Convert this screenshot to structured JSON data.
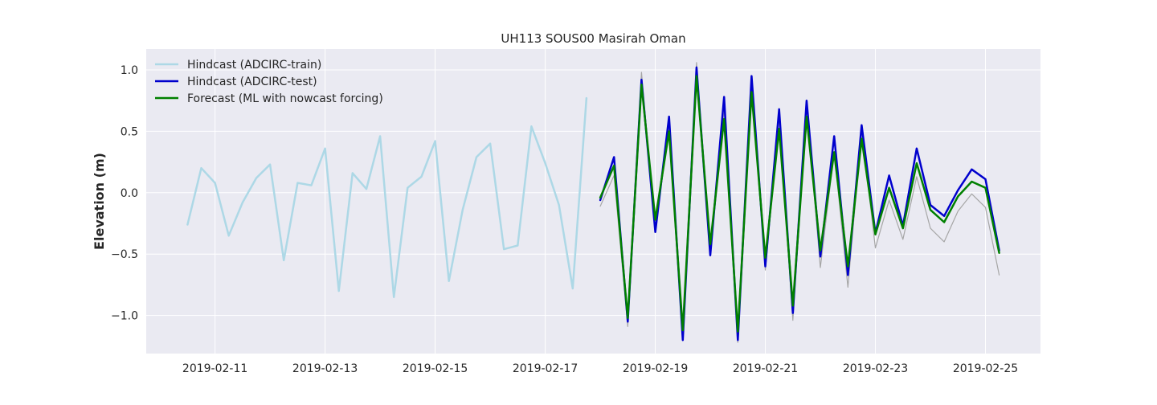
{
  "chart_data": {
    "type": "line",
    "title": "UH113 SOUS00 Masirah Oman",
    "xlabel": "",
    "ylabel": "Elevation (m)",
    "x_axis": {
      "type": "date",
      "range": [
        "2019-02-09T18:00",
        "2019-02-26T00:00"
      ],
      "ticks": [
        "2019-02-11",
        "2019-02-13",
        "2019-02-15",
        "2019-02-17",
        "2019-02-19",
        "2019-02-21",
        "2019-02-23",
        "2019-02-25"
      ]
    },
    "y_axis": {
      "range": [
        -1.31,
        1.17
      ],
      "ticks": [
        1.0,
        0.5,
        0.0,
        -0.5,
        -1.0
      ],
      "tick_labels": [
        "1.0",
        "0.5",
        "0.0",
        "−0.5",
        "−1.0"
      ]
    },
    "grid": true,
    "legend_placement": "top-left",
    "colors": {
      "plot_background": "#eaeaf2",
      "grid": "#ffffff",
      "observed": "#a6a6a6"
    },
    "series": [
      {
        "name": "Hindcast (ADCIRC-train)",
        "color": "#add8e6",
        "line_width": 2.5,
        "in_legend": true,
        "points": [
          [
            "2019-02-10T12:00",
            -0.26
          ],
          [
            "2019-02-10T18:00",
            0.2
          ],
          [
            "2019-02-11T00:00",
            0.08
          ],
          [
            "2019-02-11T06:00",
            -0.35
          ],
          [
            "2019-02-11T12:00",
            -0.08
          ],
          [
            "2019-02-11T18:00",
            0.12
          ],
          [
            "2019-02-12T00:00",
            0.23
          ],
          [
            "2019-02-12T06:00",
            -0.55
          ],
          [
            "2019-02-12T12:00",
            0.08
          ],
          [
            "2019-02-12T18:00",
            0.06
          ],
          [
            "2019-02-13T00:00",
            0.36
          ],
          [
            "2019-02-13T06:00",
            -0.8
          ],
          [
            "2019-02-13T12:00",
            0.16
          ],
          [
            "2019-02-13T18:00",
            0.03
          ],
          [
            "2019-02-14T00:00",
            0.46
          ],
          [
            "2019-02-14T06:00",
            -0.85
          ],
          [
            "2019-02-14T12:00",
            0.04
          ],
          [
            "2019-02-14T18:00",
            0.13
          ],
          [
            "2019-02-15T00:00",
            0.42
          ],
          [
            "2019-02-15T06:00",
            -0.72
          ],
          [
            "2019-02-15T12:00",
            -0.14
          ],
          [
            "2019-02-15T18:00",
            0.29
          ],
          [
            "2019-02-16T00:00",
            0.4
          ],
          [
            "2019-02-16T06:00",
            -0.46
          ],
          [
            "2019-02-16T12:00",
            -0.43
          ],
          [
            "2019-02-16T18:00",
            0.54
          ],
          [
            "2019-02-17T00:00",
            0.24
          ],
          [
            "2019-02-17T06:00",
            -0.1
          ],
          [
            "2019-02-17T12:00",
            -0.78
          ],
          [
            "2019-02-17T18:00",
            0.77
          ]
        ]
      },
      {
        "name": "",
        "color": "#a6a6a6",
        "line_width": 1.2,
        "in_legend": false,
        "points": [
          [
            "2019-02-18T00:00",
            -0.11
          ],
          [
            "2019-02-18T06:00",
            0.14
          ],
          [
            "2019-02-18T12:00",
            -1.09
          ],
          [
            "2019-02-18T18:00",
            0.98
          ],
          [
            "2019-02-19T00:00",
            -0.3
          ],
          [
            "2019-02-19T06:00",
            0.53
          ],
          [
            "2019-02-19T12:00",
            -1.2
          ],
          [
            "2019-02-19T18:00",
            1.06
          ],
          [
            "2019-02-20T00:00",
            -0.5
          ],
          [
            "2019-02-20T06:00",
            0.68
          ],
          [
            "2019-02-20T12:00",
            -1.22
          ],
          [
            "2019-02-20T18:00",
            0.9
          ],
          [
            "2019-02-21T00:00",
            -0.63
          ],
          [
            "2019-02-21T06:00",
            0.59
          ],
          [
            "2019-02-21T12:00",
            -1.04
          ],
          [
            "2019-02-21T18:00",
            0.72
          ],
          [
            "2019-02-22T00:00",
            -0.61
          ],
          [
            "2019-02-22T06:00",
            0.33
          ],
          [
            "2019-02-22T12:00",
            -0.77
          ],
          [
            "2019-02-22T18:00",
            0.5
          ],
          [
            "2019-02-23T00:00",
            -0.45
          ],
          [
            "2019-02-23T06:00",
            -0.06
          ],
          [
            "2019-02-23T12:00",
            -0.38
          ],
          [
            "2019-02-23T18:00",
            0.13
          ],
          [
            "2019-02-24T00:00",
            -0.29
          ],
          [
            "2019-02-24T06:00",
            -0.4
          ],
          [
            "2019-02-24T12:00",
            -0.15
          ],
          [
            "2019-02-24T18:00",
            -0.01
          ],
          [
            "2019-02-25T00:00",
            -0.12
          ],
          [
            "2019-02-25T06:00",
            -0.67
          ]
        ]
      },
      {
        "name": "Hindcast (ADCIRC-test)",
        "color": "#0000cd",
        "line_width": 2.5,
        "in_legend": true,
        "points": [
          [
            "2019-02-18T00:00",
            -0.06
          ],
          [
            "2019-02-18T06:00",
            0.29
          ],
          [
            "2019-02-18T12:00",
            -1.05
          ],
          [
            "2019-02-18T18:00",
            0.92
          ],
          [
            "2019-02-19T00:00",
            -0.32
          ],
          [
            "2019-02-19T06:00",
            0.62
          ],
          [
            "2019-02-19T12:00",
            -1.2
          ],
          [
            "2019-02-19T18:00",
            1.02
          ],
          [
            "2019-02-20T00:00",
            -0.51
          ],
          [
            "2019-02-20T06:00",
            0.78
          ],
          [
            "2019-02-20T12:00",
            -1.2
          ],
          [
            "2019-02-20T18:00",
            0.95
          ],
          [
            "2019-02-21T00:00",
            -0.6
          ],
          [
            "2019-02-21T06:00",
            0.68
          ],
          [
            "2019-02-21T12:00",
            -0.98
          ],
          [
            "2019-02-21T18:00",
            0.75
          ],
          [
            "2019-02-22T00:00",
            -0.52
          ],
          [
            "2019-02-22T06:00",
            0.46
          ],
          [
            "2019-02-22T12:00",
            -0.67
          ],
          [
            "2019-02-22T18:00",
            0.55
          ],
          [
            "2019-02-23T00:00",
            -0.33
          ],
          [
            "2019-02-23T06:00",
            0.14
          ],
          [
            "2019-02-23T12:00",
            -0.27
          ],
          [
            "2019-02-23T18:00",
            0.36
          ],
          [
            "2019-02-24T00:00",
            -0.1
          ],
          [
            "2019-02-24T06:00",
            -0.19
          ],
          [
            "2019-02-24T12:00",
            0.02
          ],
          [
            "2019-02-24T18:00",
            0.19
          ],
          [
            "2019-02-25T00:00",
            0.11
          ],
          [
            "2019-02-25T06:00",
            -0.47
          ]
        ]
      },
      {
        "name": "Forecast (ML with nowcast forcing)",
        "color": "#008000",
        "line_width": 2.5,
        "in_legend": true,
        "points": [
          [
            "2019-02-18T00:00",
            -0.04
          ],
          [
            "2019-02-18T06:00",
            0.22
          ],
          [
            "2019-02-18T12:00",
            -1.02
          ],
          [
            "2019-02-18T18:00",
            0.88
          ],
          [
            "2019-02-19T00:00",
            -0.22
          ],
          [
            "2019-02-19T06:00",
            0.5
          ],
          [
            "2019-02-19T12:00",
            -1.12
          ],
          [
            "2019-02-19T18:00",
            0.95
          ],
          [
            "2019-02-20T00:00",
            -0.42
          ],
          [
            "2019-02-20T06:00",
            0.6
          ],
          [
            "2019-02-20T12:00",
            -1.13
          ],
          [
            "2019-02-20T18:00",
            0.82
          ],
          [
            "2019-02-21T00:00",
            -0.53
          ],
          [
            "2019-02-21T06:00",
            0.52
          ],
          [
            "2019-02-21T12:00",
            -0.92
          ],
          [
            "2019-02-21T18:00",
            0.62
          ],
          [
            "2019-02-22T00:00",
            -0.47
          ],
          [
            "2019-02-22T06:00",
            0.33
          ],
          [
            "2019-02-22T12:00",
            -0.6
          ],
          [
            "2019-02-22T18:00",
            0.44
          ],
          [
            "2019-02-23T00:00",
            -0.34
          ],
          [
            "2019-02-23T06:00",
            0.04
          ],
          [
            "2019-02-23T12:00",
            -0.29
          ],
          [
            "2019-02-23T18:00",
            0.24
          ],
          [
            "2019-02-24T00:00",
            -0.14
          ],
          [
            "2019-02-24T06:00",
            -0.24
          ],
          [
            "2019-02-24T12:00",
            -0.03
          ],
          [
            "2019-02-24T18:00",
            0.09
          ],
          [
            "2019-02-25T00:00",
            0.04
          ],
          [
            "2019-02-25T06:00",
            -0.49
          ]
        ]
      }
    ]
  }
}
